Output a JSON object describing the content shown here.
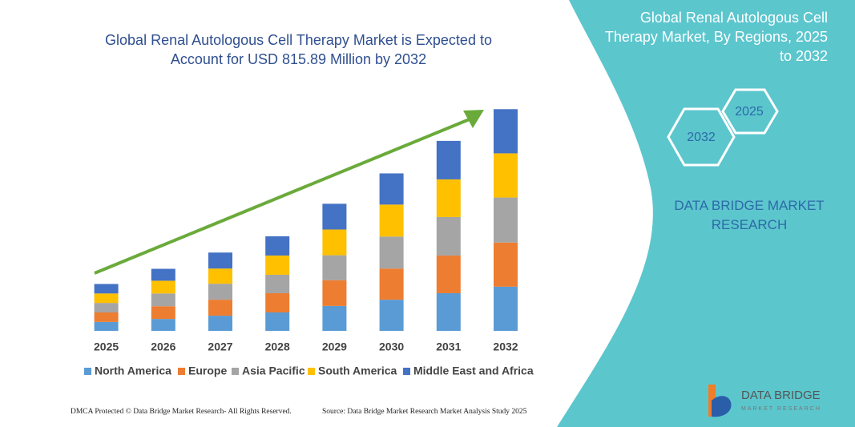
{
  "chart_data": {
    "type": "bar",
    "stacked": true,
    "title": "Global Renal Autologous Cell Therapy Market is Expected to Account for USD 815.89 Million by 2032",
    "categories": [
      "2025",
      "2026",
      "2027",
      "2028",
      "2029",
      "2030",
      "2031",
      "2032"
    ],
    "series": [
      {
        "name": "North America",
        "color": "#5b9bd5",
        "values": [
          33,
          44,
          56,
          68,
          92,
          115,
          139,
          163
        ]
      },
      {
        "name": "Europe",
        "color": "#ed7d31",
        "values": [
          35,
          47,
          59,
          71,
          95,
          115,
          139,
          163
        ]
      },
      {
        "name": "Asia Pacific",
        "color": "#a5a5a5",
        "values": [
          35,
          47,
          59,
          68,
          92,
          118,
          142,
          166
        ]
      },
      {
        "name": "South America",
        "color": "#ffc000",
        "values": [
          35,
          47,
          56,
          71,
          95,
          118,
          139,
          163
        ]
      },
      {
        "name": "Middle East and Africa",
        "color": "#4472c4",
        "values": [
          35,
          44,
          59,
          71,
          95,
          115,
          142,
          163
        ]
      }
    ]
  },
  "side_panel": {
    "title": "Global Renal Autologous Cell Therapy Market, By Regions, 2025 to 2032",
    "hexagons": [
      "2025",
      "2032"
    ],
    "brand": "DATA BRIDGE MARKET RESEARCH"
  },
  "footer": {
    "left": "DMCA Protected © Data Bridge Market Research- All Rights Reserved.",
    "right": "Source: Data Bridge Market Research Market Analysis Study 2025"
  },
  "logo": {
    "name": "DATA BRIDGE",
    "tagline": "MARKET RESEARCH"
  }
}
